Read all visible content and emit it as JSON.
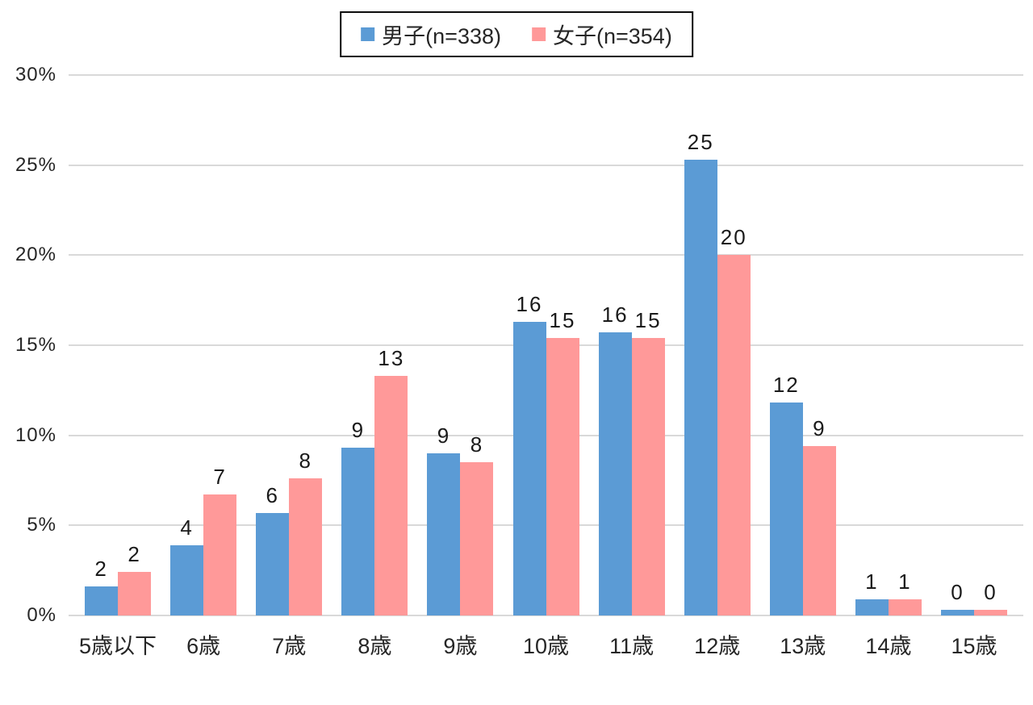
{
  "chart_data": {
    "type": "bar",
    "title": "",
    "xlabel": "",
    "ylabel": "",
    "categories": [
      "5歳以下",
      "6歳",
      "7歳",
      "8歳",
      "9歳",
      "10歳",
      "11歳",
      "12歳",
      "13歳",
      "14歳",
      "15歳"
    ],
    "series": [
      {
        "name": "男子(n=338)",
        "color": "#5B9BD5",
        "values": [
          1.6,
          3.9,
          5.7,
          9.3,
          9.0,
          16.3,
          15.7,
          25.3,
          11.8,
          0.9,
          0.3
        ],
        "data_labels": [
          "2",
          "4",
          "6",
          "9",
          "9",
          "16",
          "16",
          "25",
          "12",
          "1",
          "0"
        ]
      },
      {
        "name": "女子(n=354)",
        "color": "#FF9999",
        "values": [
          2.4,
          6.7,
          7.6,
          13.3,
          8.5,
          15.4,
          15.4,
          20.0,
          9.4,
          0.9,
          0.3
        ],
        "data_labels": [
          "2",
          "7",
          "8",
          "13",
          "8",
          "15",
          "15",
          "20",
          "9",
          "1",
          "0"
        ]
      }
    ],
    "ylim": [
      0,
      30
    ],
    "yticks": [
      {
        "value": 30,
        "label": "30%"
      },
      {
        "value": 25,
        "label": "25%"
      },
      {
        "value": 20,
        "label": "20%"
      },
      {
        "value": 15,
        "label": "15%"
      },
      {
        "value": 10,
        "label": "10%"
      },
      {
        "value": 5,
        "label": "5%"
      },
      {
        "value": 0,
        "label": "0%"
      }
    ],
    "grid": true,
    "gridline_color": "#D9D9D9",
    "background_color": "#FFFFFF",
    "text_color": "#262626",
    "legend_position": "top-center",
    "legend_border_color": "#0D0D0D"
  }
}
